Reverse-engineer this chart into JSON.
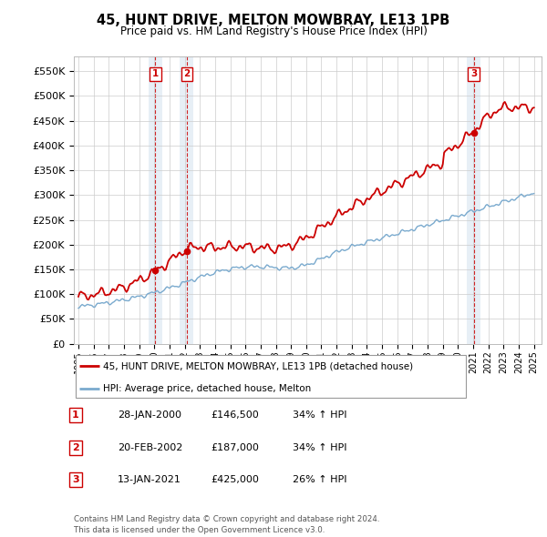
{
  "title_line1": "45, HUNT DRIVE, MELTON MOWBRAY, LE13 1PB",
  "title_line2": "Price paid vs. HM Land Registry's House Price Index (HPI)",
  "ylim": [
    0,
    580000
  ],
  "yticks": [
    0,
    50000,
    100000,
    150000,
    200000,
    250000,
    300000,
    350000,
    400000,
    450000,
    500000,
    550000
  ],
  "ytick_labels": [
    "£0",
    "£50K",
    "£100K",
    "£150K",
    "£200K",
    "£250K",
    "£300K",
    "£350K",
    "£400K",
    "£450K",
    "£500K",
    "£550K"
  ],
  "sale_dates": [
    2000.07,
    2002.13,
    2021.04
  ],
  "sale_prices": [
    146500,
    187000,
    425000
  ],
  "sale_labels": [
    "1",
    "2",
    "3"
  ],
  "red_line_color": "#cc0000",
  "blue_line_color": "#7aaace",
  "background_color": "#ffffff",
  "grid_color": "#cccccc",
  "legend_label_red": "45, HUNT DRIVE, MELTON MOWBRAY, LE13 1PB (detached house)",
  "legend_label_blue": "HPI: Average price, detached house, Melton",
  "table_rows": [
    [
      "1",
      "28-JAN-2000",
      "£146,500",
      "34% ↑ HPI"
    ],
    [
      "2",
      "20-FEB-2002",
      "£187,000",
      "34% ↑ HPI"
    ],
    [
      "3",
      "13-JAN-2021",
      "£425,000",
      "26% ↑ HPI"
    ]
  ],
  "footnote": "Contains HM Land Registry data © Crown copyright and database right 2024.\nThis data is licensed under the Open Government Licence v3.0."
}
